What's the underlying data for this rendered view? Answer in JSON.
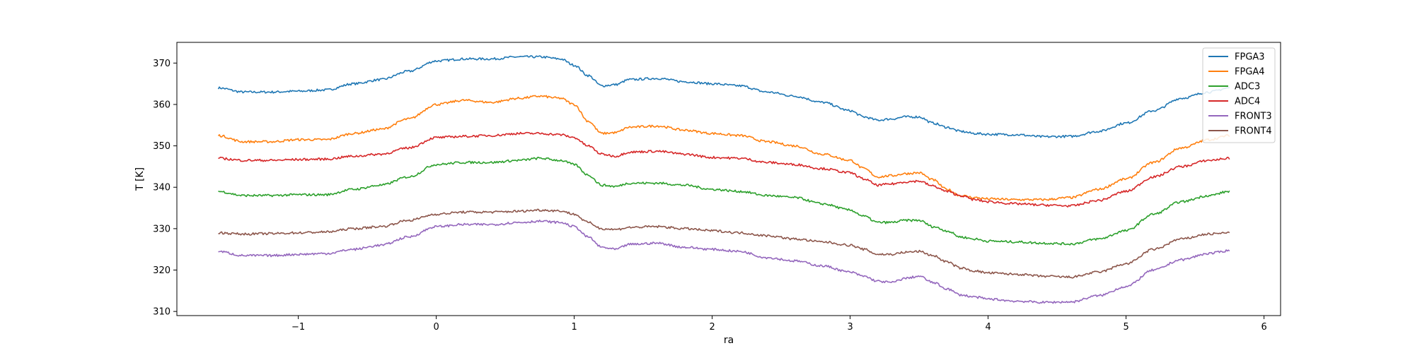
{
  "chart_data": {
    "type": "line",
    "title": "",
    "xlabel": "ra",
    "ylabel": "T [K]",
    "xlim": [
      -1.88,
      6.12
    ],
    "ylim": [
      309,
      375
    ],
    "xticks": [
      -1,
      0,
      1,
      2,
      3,
      4,
      5,
      6
    ],
    "xtick_labels": [
      "−1",
      "0",
      "1",
      "2",
      "3",
      "4",
      "5",
      "6"
    ],
    "yticks": [
      310,
      320,
      330,
      340,
      350,
      360,
      370
    ],
    "ytick_labels": [
      "310",
      "320",
      "330",
      "340",
      "350",
      "360",
      "370"
    ],
    "grid": false,
    "legend_position": "top-right",
    "x": [
      -1.58,
      -1.4,
      -1.2,
      -1.0,
      -0.8,
      -0.6,
      -0.4,
      -0.2,
      0.0,
      0.2,
      0.4,
      0.6,
      0.75,
      0.9,
      1.0,
      1.1,
      1.2,
      1.3,
      1.4,
      1.6,
      1.8,
      2.0,
      2.2,
      2.4,
      2.6,
      2.8,
      3.0,
      3.1,
      3.2,
      3.3,
      3.4,
      3.5,
      3.6,
      3.7,
      3.8,
      3.9,
      4.0,
      4.2,
      4.4,
      4.6,
      4.8,
      5.0,
      5.2,
      5.4,
      5.6,
      5.75
    ],
    "series": [
      {
        "name": "FPGA3",
        "color": "#1f77b4",
        "values": [
          364,
          363,
          363,
          363.2,
          363.5,
          365,
          366,
          368,
          370.5,
          371,
          371,
          371.5,
          371.5,
          371,
          369.5,
          367,
          364.5,
          364.8,
          366,
          366.3,
          365.5,
          365,
          364.5,
          363,
          362,
          360.5,
          358.5,
          357,
          356.2,
          356.5,
          357,
          357,
          355.5,
          354.5,
          353.5,
          353,
          352.8,
          352.7,
          352.2,
          352.3,
          353.5,
          355.5,
          358.5,
          361.5,
          363,
          364
        ]
      },
      {
        "name": "FPGA4",
        "color": "#ff7f0e",
        "values": [
          352.5,
          351,
          351,
          351.5,
          351.5,
          353,
          354,
          356.5,
          360,
          361,
          360.5,
          361.5,
          362,
          361.5,
          360,
          356,
          353,
          353.2,
          354.5,
          354.8,
          353.8,
          353,
          352.5,
          351,
          350,
          348,
          346.5,
          344.5,
          342.5,
          342.8,
          343.3,
          343.5,
          341.8,
          339.5,
          338,
          337.5,
          337.2,
          337,
          337,
          337.5,
          339.5,
          342,
          346,
          349.5,
          351.5,
          352.5
        ]
      },
      {
        "name": "ADC3",
        "color": "#2ca02c",
        "values": [
          339,
          338,
          338,
          338.2,
          338.2,
          339.5,
          340.5,
          342.5,
          345.5,
          346,
          346,
          346.5,
          347,
          346.5,
          345.5,
          343,
          340.5,
          340.2,
          341,
          341,
          340.5,
          339.5,
          339,
          338,
          337.5,
          336,
          334.5,
          333,
          331.5,
          331.5,
          332,
          332,
          330.5,
          329.5,
          328,
          327.5,
          327,
          326.8,
          326.5,
          326.3,
          327.5,
          329.5,
          333.5,
          336.5,
          338,
          339
        ]
      },
      {
        "name": "ADC4",
        "color": "#d62728",
        "values": [
          347,
          346.5,
          346.5,
          346.7,
          346.8,
          347.5,
          348,
          349.5,
          352,
          352.3,
          352.5,
          353,
          353,
          352.7,
          352,
          350,
          348,
          347.5,
          348.5,
          348.7,
          348,
          347.2,
          347,
          346,
          345.5,
          344.5,
          343.5,
          342,
          340.5,
          340.8,
          341.3,
          341.5,
          340.3,
          339,
          338,
          337,
          336.5,
          336,
          335.7,
          335.5,
          336.8,
          339,
          342.5,
          345,
          346.5,
          347
        ]
      },
      {
        "name": "FRONT3",
        "color": "#9467bd",
        "values": [
          324.5,
          323.5,
          323.5,
          323.8,
          324,
          325,
          326,
          328,
          330.5,
          331,
          331,
          331.5,
          331.8,
          331.5,
          330.5,
          328,
          325.5,
          325,
          326.2,
          326.5,
          325.5,
          325,
          324.5,
          323,
          322.2,
          321,
          319.5,
          318.5,
          317.3,
          317,
          318,
          318.5,
          317,
          315.5,
          314,
          313.5,
          313,
          312.5,
          312.2,
          312.3,
          313.8,
          316,
          320,
          322.5,
          324,
          324.7
        ]
      },
      {
        "name": "FRONT4",
        "color": "#8c564b",
        "values": [
          329,
          328.7,
          328.8,
          329,
          329.2,
          330,
          330.5,
          332,
          333.5,
          334,
          334,
          334.2,
          334.5,
          334.3,
          333.5,
          331.5,
          330,
          329.8,
          330.3,
          330.5,
          330,
          329.5,
          329,
          328.3,
          327.5,
          326.8,
          326,
          325,
          323.8,
          323.8,
          324.3,
          324.5,
          323.5,
          322,
          320.5,
          319.8,
          319.3,
          319,
          318.5,
          318.3,
          319.5,
          321.5,
          325,
          327.5,
          328.7,
          329
        ]
      }
    ]
  }
}
